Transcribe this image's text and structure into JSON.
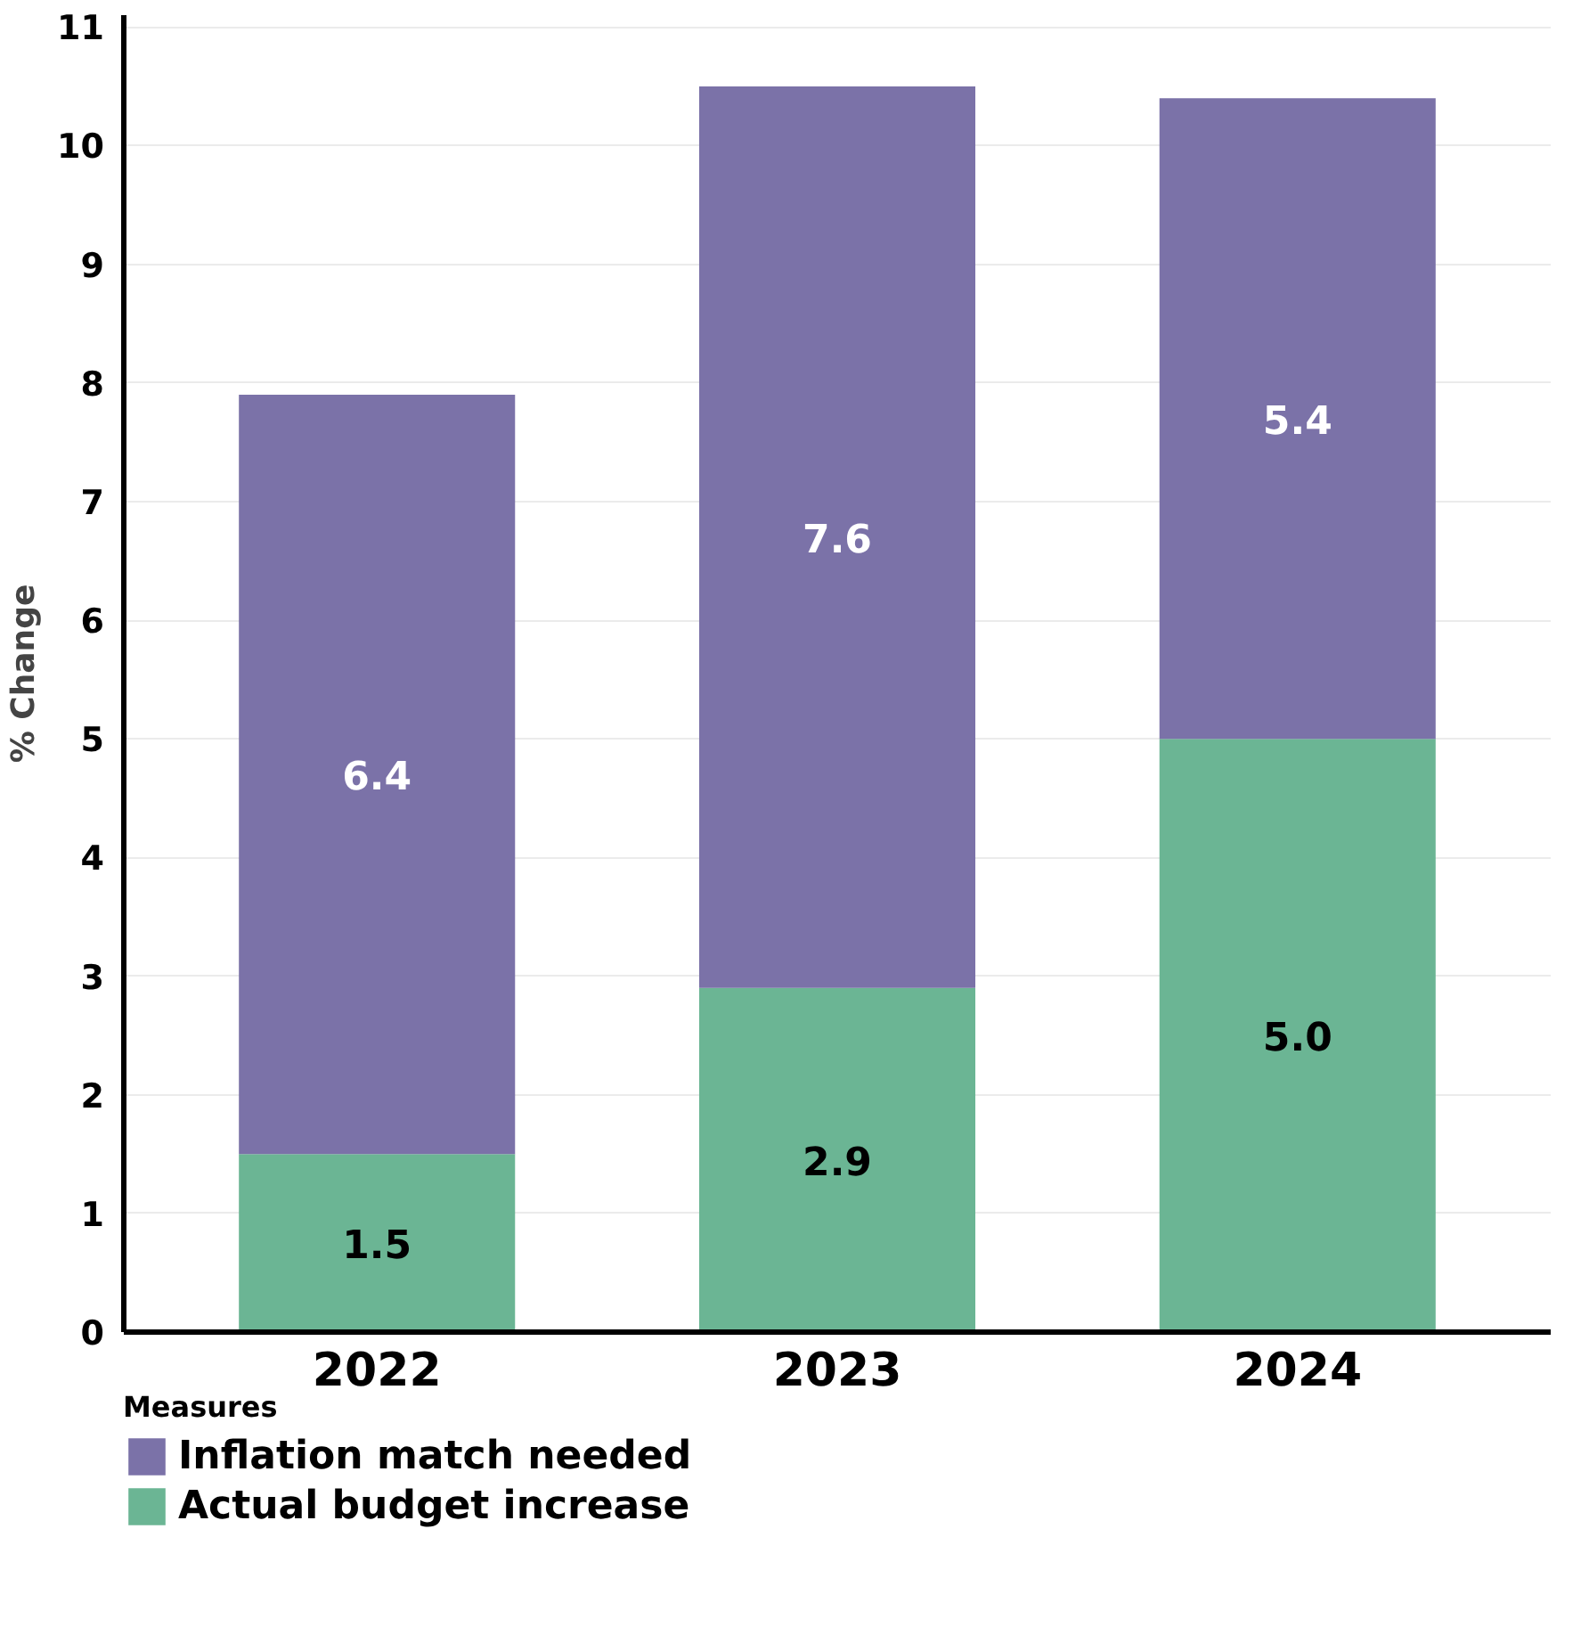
{
  "chart_data": {
    "type": "bar",
    "stacked": true,
    "ylabel": "% Change",
    "legend_title": "Measures",
    "categories": [
      "2022",
      "2023",
      "2024"
    ],
    "series": [
      {
        "name": "Actual budget increase",
        "color": "#6bb594",
        "values": [
          1.5,
          2.9,
          5.0
        ],
        "value_labels": [
          "1.5",
          "2.9",
          "5.0"
        ]
      },
      {
        "name": "Inflation match needed",
        "color": "#7b72a8",
        "values": [
          6.4,
          7.6,
          5.4
        ],
        "value_labels": [
          "6.4",
          "7.6",
          "5.4"
        ]
      }
    ],
    "ylim": [
      0,
      11.1
    ],
    "yticks": [
      0,
      1,
      2,
      3,
      4,
      5,
      6,
      7,
      8,
      9,
      10,
      11
    ],
    "grid": "y",
    "data_labels": true,
    "legend": "bottom"
  }
}
